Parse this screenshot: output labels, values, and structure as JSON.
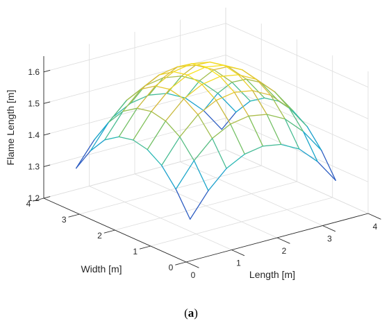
{
  "chart_data": {
    "type": "surface",
    "title": "",
    "xlabel": "Length [m]",
    "ylabel": "Width [m]",
    "zlabel": "Flame Length [m]",
    "xlim": [
      0,
      4
    ],
    "ylim": [
      0,
      4
    ],
    "zlim": [
      1.2,
      1.65
    ],
    "x_ticks": [
      "0",
      "1",
      "2",
      "3",
      "4"
    ],
    "y_ticks": [
      "0",
      "1",
      "2",
      "3",
      "4"
    ],
    "z_ticks": [
      "1.2",
      "1.3",
      "1.4",
      "1.5",
      "1.6"
    ],
    "grid": true,
    "colormap": [
      "#3e26a8",
      "#1f8ad8",
      "#1cb7c2",
      "#7cc15b",
      "#d6b93a",
      "#fbe51d"
    ],
    "x": [
      0.4,
      0.8,
      1.2,
      1.6,
      2.0,
      2.4,
      2.8,
      3.2,
      3.6
    ],
    "y": [
      0.4,
      0.8,
      1.2,
      1.6,
      2.0,
      2.4,
      2.8,
      3.2,
      3.6
    ],
    "z": [
      [
        1.3,
        1.375,
        1.43,
        1.46,
        1.47,
        1.46,
        1.43,
        1.375,
        1.3
      ],
      [
        1.375,
        1.45,
        1.505,
        1.535,
        1.545,
        1.535,
        1.505,
        1.45,
        1.375
      ],
      [
        1.43,
        1.505,
        1.56,
        1.59,
        1.6,
        1.59,
        1.56,
        1.505,
        1.43
      ],
      [
        1.46,
        1.535,
        1.59,
        1.62,
        1.63,
        1.62,
        1.59,
        1.535,
        1.46
      ],
      [
        1.47,
        1.545,
        1.6,
        1.63,
        1.64,
        1.63,
        1.6,
        1.545,
        1.47
      ],
      [
        1.46,
        1.535,
        1.59,
        1.62,
        1.63,
        1.62,
        1.59,
        1.535,
        1.46
      ],
      [
        1.43,
        1.505,
        1.56,
        1.59,
        1.6,
        1.59,
        1.56,
        1.505,
        1.43
      ],
      [
        1.375,
        1.45,
        1.505,
        1.535,
        1.545,
        1.535,
        1.505,
        1.45,
        1.375
      ],
      [
        1.3,
        1.375,
        1.43,
        1.46,
        1.47,
        1.46,
        1.43,
        1.375,
        1.3
      ]
    ]
  },
  "caption": {
    "open": "(",
    "letter": "a",
    "close": ")"
  }
}
